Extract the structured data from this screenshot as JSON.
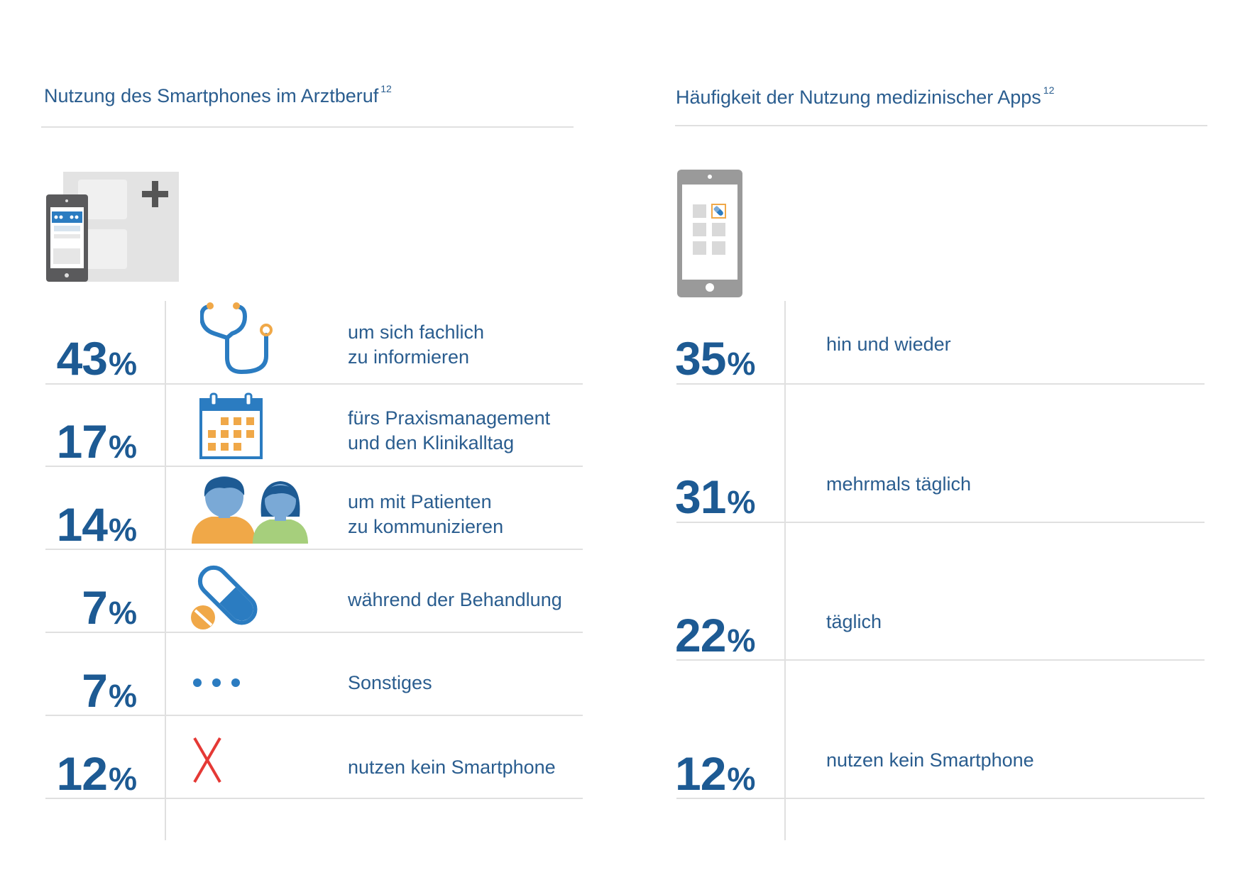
{
  "left": {
    "title": "Nutzung des Smartphones im Arztberuf",
    "footnote": "12",
    "percent_sign": "%",
    "rows": [
      {
        "value": 43,
        "text": "um sich fachlich\nzu informieren",
        "icon": "stethoscope-icon"
      },
      {
        "value": 17,
        "text": "fürs Praxismanagement\nund den Klinikalltag",
        "icon": "calendar-icon"
      },
      {
        "value": 14,
        "text": "um mit Patienten\nzu kommunizieren",
        "icon": "patients-icon"
      },
      {
        "value": 7,
        "text": "während der Behandlung",
        "icon": "pill-icon"
      },
      {
        "value": 7,
        "text": "Sonstiges",
        "icon": "dots-icon"
      },
      {
        "value": 12,
        "text": "nutzen kein Smartphone",
        "icon": "cross-icon"
      }
    ]
  },
  "right": {
    "title": "Häufigkeit der Nutzung medizinischer Apps",
    "footnote": "12",
    "percent_sign": "%",
    "rows": [
      {
        "value": 35,
        "text": "hin und wieder"
      },
      {
        "value": 31,
        "text": "mehrmals täglich"
      },
      {
        "value": 22,
        "text": "täglich"
      },
      {
        "value": 12,
        "text": "nutzen kein Smartphone"
      }
    ]
  },
  "colors": {
    "primary": "#1d5a93",
    "text": "#2a5d8f",
    "icon_blue": "#2b7cc1",
    "orange": "#f0a848",
    "green": "#a6cf7c",
    "red": "#e53935",
    "rule": "#e0e0e0"
  },
  "chart_data": [
    {
      "type": "table",
      "title": "Nutzung des Smartphones im Arztberuf",
      "categories": [
        "um sich fachlich zu informieren",
        "fürs Praxismanagement und den Klinikalltag",
        "um mit Patienten zu kommunizieren",
        "während der Behandlung",
        "Sonstiges",
        "nutzen kein Smartphone"
      ],
      "values": [
        43,
        17,
        14,
        7,
        7,
        12
      ],
      "unit": "%"
    },
    {
      "type": "table",
      "title": "Häufigkeit der Nutzung medizinischer Apps",
      "categories": [
        "hin und wieder",
        "mehrmals täglich",
        "täglich",
        "nutzen kein Smartphone"
      ],
      "values": [
        35,
        31,
        22,
        12
      ],
      "unit": "%"
    }
  ]
}
